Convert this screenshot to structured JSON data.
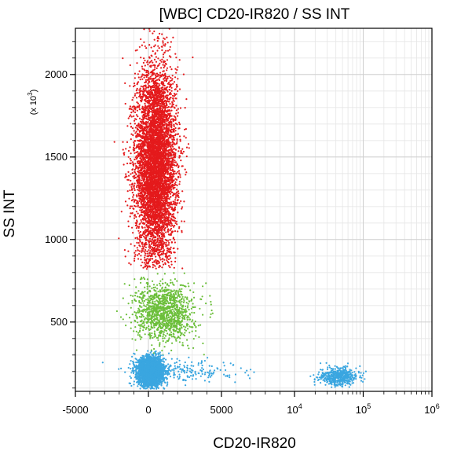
{
  "chart_data": {
    "type": "scatter",
    "title": "[WBC] CD20-IR820 / SS INT",
    "xlabel": "CD20-IR820",
    "ylabel": "SS INT",
    "y_multiplier": "(x 10",
    "y_multiplier_exp": "3",
    "y_multiplier_close": ")",
    "x_scale": "hybrid linear (-5000 to 10000) then log (10^4 to 10^6)",
    "xlim": [
      -5000,
      1000000
    ],
    "ylim": [
      80,
      2280
    ],
    "x_ticks": [
      {
        "value": -5000,
        "label": "-5000",
        "type": "lin"
      },
      {
        "value": 0,
        "label": "0",
        "type": "lin"
      },
      {
        "value": 5000,
        "label": "5000",
        "type": "lin"
      },
      {
        "value": 10000,
        "label": "10",
        "exp": "4",
        "type": "log"
      },
      {
        "value": 100000,
        "label": "10",
        "exp": "5",
        "type": "log"
      },
      {
        "value": 1000000,
        "label": "10",
        "exp": "6",
        "type": "log"
      }
    ],
    "y_ticks": [
      {
        "value": 500,
        "label": "500"
      },
      {
        "value": 1000,
        "label": "1000"
      },
      {
        "value": 1500,
        "label": "1500"
      },
      {
        "value": 2000,
        "label": "2000"
      }
    ],
    "grid": true,
    "series": [
      {
        "color": "#e41a1c",
        "clusters": [
          {
            "x_mean": 500,
            "x_sd": 700,
            "y_mean": 1450,
            "y_sd": 300,
            "y_min": 820,
            "y_max": 2280,
            "count": 6000
          }
        ]
      },
      {
        "color": "#6cbf3b",
        "clusters": [
          {
            "x_mean": 1100,
            "x_sd": 1000,
            "y_mean": 560,
            "y_sd": 90,
            "y_min": 300,
            "y_max": 800,
            "count": 1200
          }
        ]
      },
      {
        "color": "#3aa6e0",
        "clusters": [
          {
            "x_mean": 150,
            "x_sd": 450,
            "y_mean": 200,
            "y_sd": 45,
            "y_min": 95,
            "y_max": 330,
            "count": 2500
          },
          {
            "x_mean": 2500,
            "x_sd": 1800,
            "y_mean": 205,
            "y_sd": 35,
            "y_min": 110,
            "y_max": 300,
            "count": 200
          },
          {
            "x_log_mean": 4.65,
            "x_log_sd": 0.14,
            "y_mean": 170,
            "y_sd": 28,
            "y_min": 100,
            "y_max": 270,
            "count": 500
          }
        ]
      }
    ]
  }
}
